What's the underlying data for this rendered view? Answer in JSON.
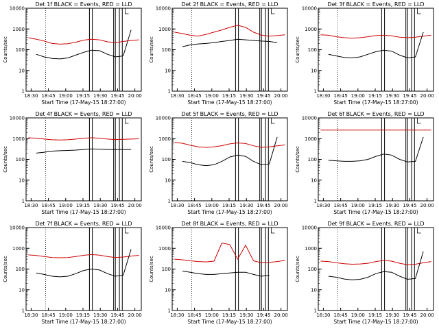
{
  "figure": {
    "ylabel": "Counts/sec",
    "xlabel": "Start Time (17-May-15 18:27:00)",
    "xticks": [
      "18:30",
      "18:45",
      "19:00",
      "19:15",
      "19:30",
      "19:45",
      "20:00"
    ],
    "yticks": [
      "1",
      "10",
      "100",
      "1000",
      "10000"
    ],
    "colors": {
      "events": "#000000",
      "lld": "#cc0000"
    }
  },
  "chart_data": [
    {
      "type": "line",
      "title": "Det 1f BLACK = Events, RED = LLD",
      "ylim": [
        1,
        10000
      ],
      "log_y": true,
      "series": [
        {
          "values": [
            380,
            320,
            260,
            200,
            185,
            195,
            230,
            290,
            320,
            300,
            240,
            220,
            250,
            280,
            300
          ]
        },
        {
          "values": [
            null,
            60,
            45,
            38,
            36,
            40,
            55,
            75,
            95,
            90,
            60,
            45,
            50,
            900,
            null
          ]
        }
      ]
    },
    {
      "type": "line",
      "title": "Det 2f BLACK = Events, RED = LLD",
      "ylim": [
        1,
        10000
      ],
      "log_y": true,
      "series": [
        {
          "values": [
            700,
            600,
            500,
            450,
            550,
            700,
            900,
            1200,
            1500,
            1200,
            700,
            500,
            450,
            480,
            520
          ]
        },
        {
          "values": [
            null,
            140,
            170,
            190,
            200,
            220,
            250,
            280,
            320,
            300,
            280,
            260,
            250,
            220,
            null
          ]
        }
      ]
    },
    {
      "type": "line",
      "title": "Det 3f BLACK = Events, RED = LLD",
      "ylim": [
        1,
        10000
      ],
      "log_y": true,
      "series": [
        {
          "values": [
            520,
            500,
            420,
            380,
            360,
            380,
            420,
            480,
            500,
            470,
            400,
            380,
            400,
            450,
            500
          ]
        },
        {
          "values": [
            null,
            60,
            50,
            42,
            40,
            45,
            60,
            80,
            95,
            85,
            55,
            40,
            45,
            700,
            null
          ]
        }
      ]
    },
    {
      "type": "line",
      "title": "Det 4f BLACK = Events, RED = LLD",
      "ylim": [
        1,
        10000
      ],
      "log_y": true,
      "series": [
        {
          "values": [
            1100,
            1050,
            950,
            880,
            860,
            880,
            950,
            1050,
            1100,
            1050,
            950,
            900,
            920,
            950,
            980
          ]
        },
        {
          "values": [
            null,
            200,
            220,
            250,
            260,
            270,
            280,
            300,
            320,
            310,
            300,
            300,
            300,
            300,
            null
          ]
        }
      ]
    },
    {
      "type": "line",
      "title": "Det 5f BLACK = Events, RED = LLD",
      "ylim": [
        1,
        10000
      ],
      "log_y": true,
      "series": [
        {
          "values": [
            650,
            600,
            480,
            400,
            380,
            400,
            460,
            560,
            620,
            580,
            450,
            380,
            400,
            450,
            500
          ]
        },
        {
          "values": [
            null,
            80,
            70,
            55,
            50,
            55,
            80,
            130,
            160,
            140,
            80,
            55,
            60,
            1200,
            null
          ]
        }
      ]
    },
    {
      "type": "line",
      "title": "Det 6f BLACK = Events, RED = LLD",
      "ylim": [
        1,
        10000
      ],
      "log_y": true,
      "series": [
        {
          "values": [
            2600,
            2600,
            2600,
            2600,
            2600,
            2600,
            2600,
            2600,
            2600,
            2600,
            2600,
            2600,
            2600,
            2600,
            2600
          ]
        },
        {
          "values": [
            null,
            90,
            85,
            80,
            80,
            85,
            100,
            140,
            180,
            160,
            100,
            75,
            80,
            1200,
            null
          ]
        }
      ]
    },
    {
      "type": "line",
      "title": "Det 7f BLACK = Events, RED = LLD",
      "ylim": [
        1,
        10000
      ],
      "log_y": true,
      "series": [
        {
          "values": [
            480,
            450,
            400,
            360,
            350,
            360,
            400,
            460,
            500,
            470,
            400,
            360,
            380,
            420,
            460
          ]
        },
        {
          "values": [
            null,
            65,
            55,
            45,
            42,
            45,
            60,
            85,
            100,
            90,
            60,
            45,
            50,
            900,
            null
          ]
        }
      ]
    },
    {
      "type": "line",
      "title": "Det 8f BLACK = Events, RED = LLD",
      "ylim": [
        1,
        10000
      ],
      "log_y": true,
      "series": [
        {
          "values": [
            300,
            280,
            250,
            230,
            220,
            240,
            1800,
            1500,
            300,
            1400,
            250,
            200,
            210,
            230,
            260
          ]
        },
        {
          "values": [
            null,
            80,
            70,
            60,
            55,
            55,
            60,
            65,
            70,
            70,
            55,
            45,
            50,
            null,
            null
          ]
        }
      ]
    },
    {
      "type": "line",
      "title": "Det 9f BLACK = Events, RED = LLD",
      "ylim": [
        1,
        10000
      ],
      "log_y": true,
      "series": [
        {
          "values": [
            240,
            230,
            200,
            180,
            170,
            175,
            190,
            230,
            260,
            240,
            190,
            160,
            170,
            200,
            230
          ]
        },
        {
          "values": [
            null,
            45,
            40,
            33,
            30,
            32,
            40,
            60,
            75,
            70,
            45,
            32,
            35,
            700,
            null
          ]
        }
      ]
    }
  ]
}
